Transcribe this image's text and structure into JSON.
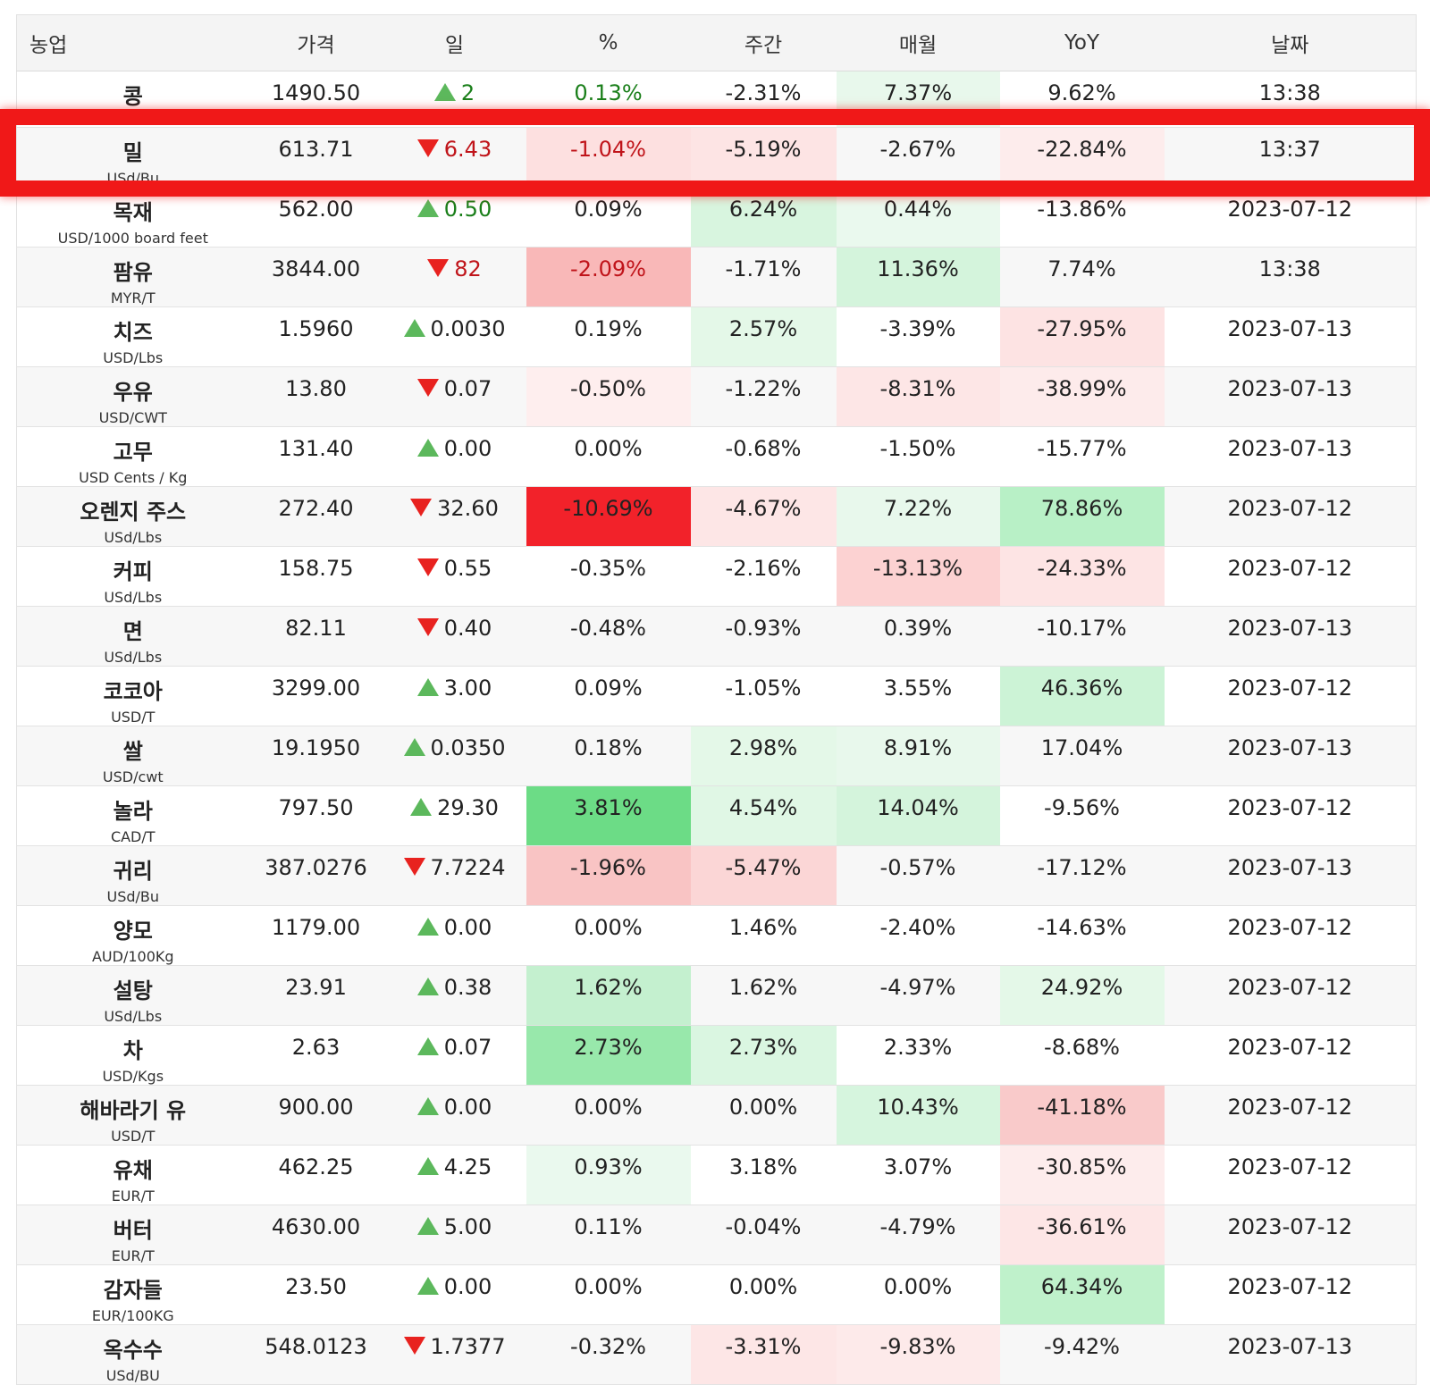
{
  "headers": [
    "농업",
    "가격",
    "일",
    "%",
    "주간",
    "매월",
    "YoY",
    "날짜"
  ],
  "rows": [
    {
      "name": "콩",
      "unit": "",
      "price": "1490.50",
      "dir": "up",
      "day": "2",
      "pct": "0.13%",
      "wk": "-2.31%",
      "mo": "7.37%",
      "yoy": "9.62%",
      "date": "13:38",
      "bg": [
        "",
        "",
        "#e8f8ec",
        ""
      ],
      "txt": "pos"
    },
    {
      "name": "밀",
      "unit": "USd/Bu",
      "price": "613.71",
      "dir": "down",
      "day": "6.43",
      "pct": "-1.04%",
      "wk": "-5.19%",
      "mo": "-2.67%",
      "yoy": "-22.84%",
      "date": "13:37",
      "bg": [
        "#fde0e0",
        "#fde4e4",
        "",
        "#fdecec"
      ],
      "txt": "neg"
    },
    {
      "name": "목재",
      "unit": "USD/1000 board feet",
      "price": "562.00",
      "dir": "up",
      "day": "0.50",
      "pct": "0.09%",
      "wk": "6.24%",
      "mo": "0.44%",
      "yoy": "-13.86%",
      "date": "2023-07-12",
      "bg": [
        "",
        "#d8f5df",
        "#eaf9ee",
        ""
      ],
      "txt": ""
    },
    {
      "name": "팜유",
      "unit": "MYR/T",
      "price": "3844.00",
      "dir": "down",
      "day": "82",
      "pct": "-2.09%",
      "wk": "-1.71%",
      "mo": "11.36%",
      "yoy": "7.74%",
      "date": "13:38",
      "bg": [
        "#f9b8b8",
        "",
        "#d4f4dc",
        ""
      ],
      "txt": "neg"
    },
    {
      "name": "치즈",
      "unit": "USD/Lbs",
      "price": "1.5960",
      "dir": "up",
      "day": "0.0030",
      "pct": "0.19%",
      "wk": "2.57%",
      "mo": "-3.39%",
      "yoy": "-27.95%",
      "date": "2023-07-13",
      "bg": [
        "",
        "#e4f8e8",
        "",
        "#fde3e3"
      ],
      "txt": ""
    },
    {
      "name": "우유",
      "unit": "USD/CWT",
      "price": "13.80",
      "dir": "down",
      "day": "0.07",
      "pct": "-0.50%",
      "wk": "-1.22%",
      "mo": "-8.31%",
      "yoy": "-38.99%",
      "date": "2023-07-13",
      "bg": [
        "#feeeee",
        "",
        "#fde6e6",
        "#fdebeb"
      ],
      "txt": ""
    },
    {
      "name": "고무",
      "unit": "USD Cents / Kg",
      "price": "131.40",
      "dir": "up",
      "day": "0.00",
      "pct": "0.00%",
      "wk": "-0.68%",
      "mo": "-1.50%",
      "yoy": "-15.77%",
      "date": "2023-07-13",
      "bg": [
        "",
        "",
        "",
        ""
      ],
      "txt": ""
    },
    {
      "name": "오렌지 주스",
      "unit": "USd/Lbs",
      "price": "272.40",
      "dir": "down",
      "day": "32.60",
      "pct": "-10.69%",
      "wk": "-4.67%",
      "mo": "7.22%",
      "yoy": "78.86%",
      "date": "2023-07-12",
      "bg": [
        "#f2222a",
        "#fde6e6",
        "#e8f8ec",
        "#b8f0c6"
      ],
      "txt": ""
    },
    {
      "name": "커피",
      "unit": "USd/Lbs",
      "price": "158.75",
      "dir": "down",
      "day": "0.55",
      "pct": "-0.35%",
      "wk": "-2.16%",
      "mo": "-13.13%",
      "yoy": "-24.33%",
      "date": "2023-07-12",
      "bg": [
        "",
        "",
        "#fcd2d2",
        "#fde4e4"
      ],
      "txt": ""
    },
    {
      "name": "면",
      "unit": "USd/Lbs",
      "price": "82.11",
      "dir": "down",
      "day": "0.40",
      "pct": "-0.48%",
      "wk": "-0.93%",
      "mo": "0.39%",
      "yoy": "-10.17%",
      "date": "2023-07-13",
      "bg": [
        "",
        "",
        "",
        ""
      ],
      "txt": ""
    },
    {
      "name": "코코아",
      "unit": "USD/T",
      "price": "3299.00",
      "dir": "up",
      "day": "3.00",
      "pct": "0.09%",
      "wk": "-1.05%",
      "mo": "3.55%",
      "yoy": "46.36%",
      "date": "2023-07-12",
      "bg": [
        "",
        "",
        "",
        "#ccf3d6"
      ],
      "txt": ""
    },
    {
      "name": "쌀",
      "unit": "USD/cwt",
      "price": "19.1950",
      "dir": "up",
      "day": "0.0350",
      "pct": "0.18%",
      "wk": "2.98%",
      "mo": "8.91%",
      "yoy": "17.04%",
      "date": "2023-07-13",
      "bg": [
        "",
        "#e4f8e8",
        "#e8f8ec",
        ""
      ],
      "txt": ""
    },
    {
      "name": "놀라",
      "unit": "CAD/T",
      "price": "797.50",
      "dir": "up",
      "day": "29.30",
      "pct": "3.81%",
      "wk": "4.54%",
      "mo": "14.04%",
      "yoy": "-9.56%",
      "date": "2023-07-12",
      "bg": [
        "#6cdc86",
        "#e0f7e5",
        "#d4f4dc",
        ""
      ],
      "txt": ""
    },
    {
      "name": "귀리",
      "unit": "USd/Bu",
      "price": "387.0276",
      "dir": "down",
      "day": "7.7224",
      "pct": "-1.96%",
      "wk": "-5.47%",
      "mo": "-0.57%",
      "yoy": "-17.12%",
      "date": "2023-07-13",
      "bg": [
        "#f9c4c4",
        "#fbd6d6",
        "",
        ""
      ],
      "txt": ""
    },
    {
      "name": "양모",
      "unit": "AUD/100Kg",
      "price": "1179.00",
      "dir": "up",
      "day": "0.00",
      "pct": "0.00%",
      "wk": "1.46%",
      "mo": "-2.40%",
      "yoy": "-14.63%",
      "date": "2023-07-12",
      "bg": [
        "",
        "",
        "",
        ""
      ],
      "txt": ""
    },
    {
      "name": "설탕",
      "unit": "USd/Lbs",
      "price": "23.91",
      "dir": "up",
      "day": "0.38",
      "pct": "1.62%",
      "wk": "1.62%",
      "mo": "-4.97%",
      "yoy": "24.92%",
      "date": "2023-07-12",
      "bg": [
        "#c4f0cf",
        "",
        "",
        "#e4f8e8"
      ],
      "txt": ""
    },
    {
      "name": "차",
      "unit": "USD/Kgs",
      "price": "2.63",
      "dir": "up",
      "day": "0.07",
      "pct": "2.73%",
      "wk": "2.73%",
      "mo": "2.33%",
      "yoy": "-8.68%",
      "date": "2023-07-12",
      "bg": [
        "#98e8ab",
        "#daf6e1",
        "",
        ""
      ],
      "txt": ""
    },
    {
      "name": "해바라기 유",
      "unit": "USD/T",
      "price": "900.00",
      "dir": "up",
      "day": "0.00",
      "pct": "0.00%",
      "wk": "0.00%",
      "mo": "10.43%",
      "yoy": "-41.18%",
      "date": "2023-07-12",
      "bg": [
        "",
        "",
        "#d6f5de",
        "#f9caca"
      ],
      "txt": ""
    },
    {
      "name": "유채",
      "unit": "EUR/T",
      "price": "462.25",
      "dir": "up",
      "day": "4.25",
      "pct": "0.93%",
      "wk": "3.18%",
      "mo": "3.07%",
      "yoy": "-30.85%",
      "date": "2023-07-12",
      "bg": [
        "#eaf9ee",
        "",
        "",
        "#fdecec"
      ],
      "txt": ""
    },
    {
      "name": "버터",
      "unit": "EUR/T",
      "price": "4630.00",
      "dir": "up",
      "day": "5.00",
      "pct": "0.11%",
      "wk": "-0.04%",
      "mo": "-4.79%",
      "yoy": "-36.61%",
      "date": "2023-07-12",
      "bg": [
        "",
        "",
        "",
        "#fde6e6"
      ],
      "txt": ""
    },
    {
      "name": "감자들",
      "unit": "EUR/100KG",
      "price": "23.50",
      "dir": "up",
      "day": "0.00",
      "pct": "0.00%",
      "wk": "0.00%",
      "mo": "0.00%",
      "yoy": "64.34%",
      "date": "2023-07-12",
      "bg": [
        "",
        "",
        "",
        "#bff1cb"
      ],
      "txt": ""
    },
    {
      "name": "옥수수",
      "unit": "USd/BU",
      "price": "548.0123",
      "dir": "down",
      "day": "1.7377",
      "pct": "-0.32%",
      "wk": "-3.31%",
      "mo": "-9.83%",
      "yoy": "-9.42%",
      "date": "2023-07-13",
      "bg": [
        "",
        "#fde6e6",
        "#fdeaea",
        ""
      ],
      "txt": ""
    }
  ]
}
